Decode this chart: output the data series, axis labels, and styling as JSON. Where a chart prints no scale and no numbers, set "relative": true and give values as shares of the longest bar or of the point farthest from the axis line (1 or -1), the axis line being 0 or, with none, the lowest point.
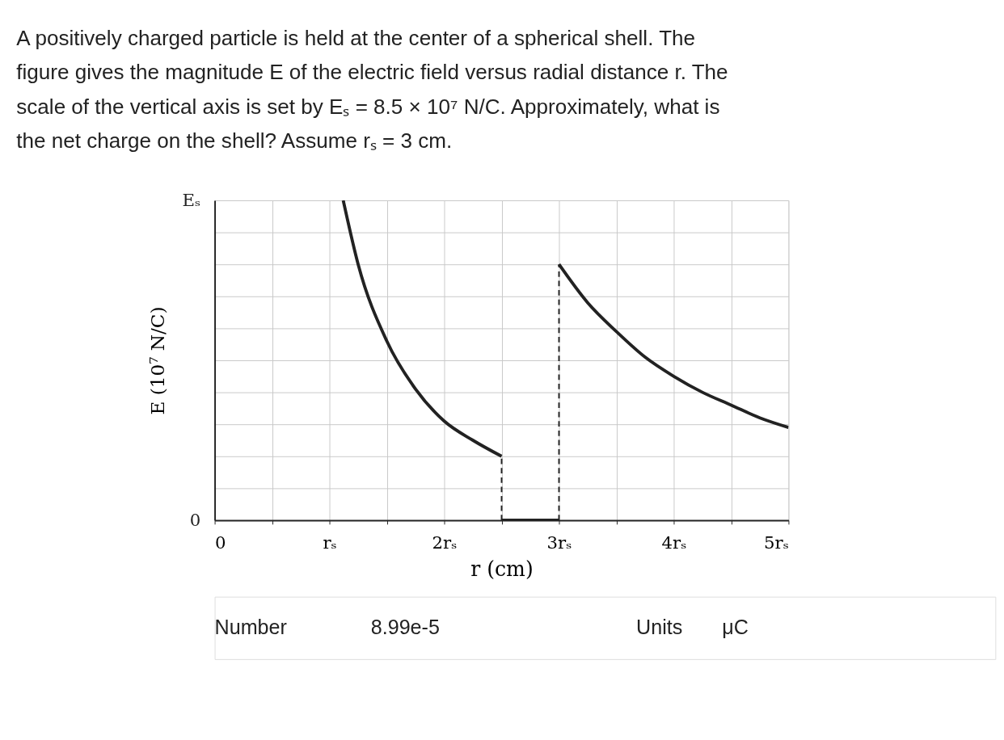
{
  "chart_data": {
    "type": "line",
    "title": "A positively charged particle is held at the center of a spherical shell. The figure gives the magnitude E of the electric field versus radial distance r. The scale of the vertical axis is set by Eₛ = 8.5 × 10⁷ N/C. Approximately, what is the net charge on the shell? Assume rₛ = 3 cm.",
    "xlabel": "r (cm)",
    "ylabel": "E (10⁷ N/C)",
    "series": [
      {
        "color": "#222222",
        "x": [
          1.12,
          1.25,
          1.5,
          1.75,
          2,
          2.25,
          2.5
        ],
        "values": [
          1.0,
          0.8,
          0.56,
          0.41,
          0.31,
          0.25,
          0.2
        ]
      },
      {
        "color": "#222222",
        "x": [
          2.5,
          3
        ],
        "values": [
          0,
          0
        ]
      },
      {
        "color": "#222222",
        "x": [
          3,
          3.25,
          3.5,
          3.75,
          4,
          4.25,
          4.5,
          4.75,
          5
        ],
        "values": [
          0.8,
          0.68,
          0.59,
          0.51,
          0.45,
          0.4,
          0.36,
          0.32,
          0.29
        ]
      },
      {
        "color": "#222222",
        "x": [
          2.5,
          2.5
        ],
        "values": [
          0,
          0.2
        ],
        "line_style": "dashed"
      },
      {
        "color": "#222222",
        "x": [
          3,
          3
        ],
        "values": [
          0,
          0.8
        ],
        "line_style": "dashed"
      }
    ],
    "relative": true,
    "xlim": [
      0,
      5
    ],
    "xticks": [
      0,
      {
        "value": 0.5,
        "label": null
      },
      {
        "value": 1,
        "label": "rₛ"
      },
      {
        "value": 1.5,
        "label": null
      },
      {
        "value": 2,
        "label": "2rₛ"
      },
      {
        "value": 2.5,
        "label": null
      },
      {
        "value": 3,
        "label": "3rₛ"
      },
      {
        "value": 3.5,
        "label": null
      },
      {
        "value": 4,
        "label": "4rₛ"
      },
      {
        "value": 4.5,
        "label": null
      },
      {
        "value": 5,
        "label": "5rₛ"
      }
    ],
    "grid": true,
    "line_style": "solid",
    "marker": "none",
    "annotations": [
      "Eₛ",
      "0",
      "Number",
      "8.99e-5",
      "Units",
      "μC"
    ]
  }
}
